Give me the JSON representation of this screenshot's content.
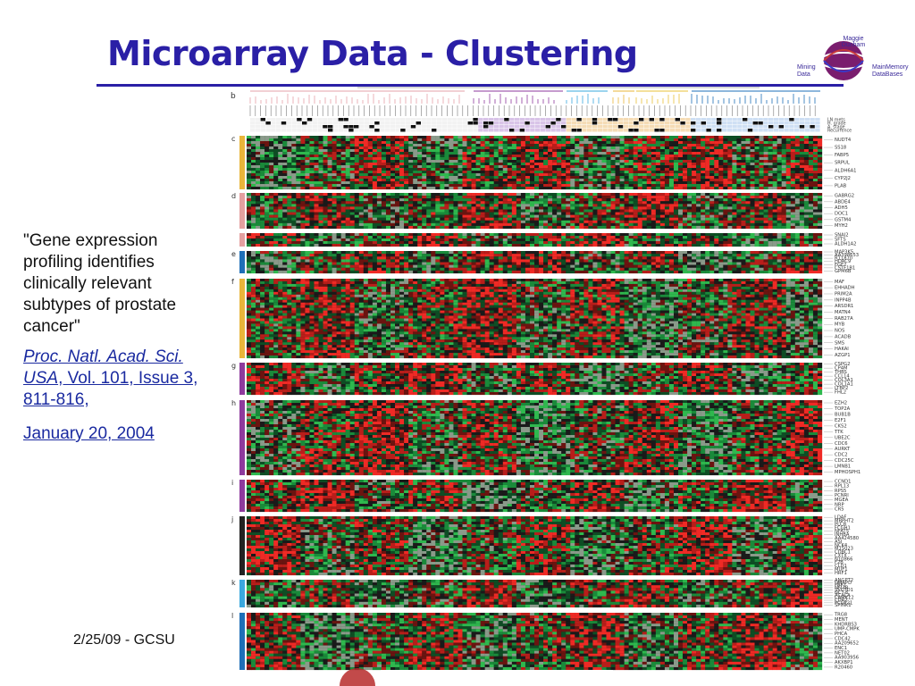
{
  "slide": {
    "title": "Microarray Data - Clustering",
    "footer_date": "2/25/09 - GCSU"
  },
  "caption": {
    "quote": "\"Gene expression profiling identifies clinically relevant subtypes of prostate cancer\"",
    "journal": "Proc. Natl. Acad. Sci. USA",
    "volume": ", Vol. 101, Issue 3, 811-816,",
    "date": "January 20, 2004"
  },
  "logo": {
    "center": "Maggie Dunham",
    "left": "Mining Data",
    "right": "MainMemory DataBases"
  },
  "figure": {
    "panel_b_label": "b",
    "clinical_rows": [
      "LN mets",
      "H. grade",
      "A. stage",
      "Recurrence"
    ],
    "panels": [
      {
        "label": "c",
        "color": "#e9b53a",
        "genes": [
          "NUDT4",
          "SS18",
          "FABP5",
          "SRPUL",
          "ALDH6A1",
          "CYP2J2",
          "PLAB"
        ]
      },
      {
        "label": "d",
        "color": "#e4a0a0",
        "genes": [
          "GABRG2",
          "ABDE4",
          "ADH5",
          "DOC1",
          "GSTM4",
          "MYH2"
        ]
      },
      {
        "label": "",
        "color": "#e4a0a0",
        "genes": [
          "SNAI2",
          "SFTS",
          "ALDH1A2"
        ]
      },
      {
        "label": "e",
        "color": "#1e6fb8",
        "genes": [
          "MAP3K5",
          "AA398653",
          "R11870",
          "HDAC9",
          "FGF2",
          "CSTF1B1",
          "GPM6B"
        ]
      },
      {
        "label": "f",
        "color": "#e9b53a",
        "genes": [
          "MAF",
          "EHHADH",
          "PRIM2A",
          "INPP4B",
          "ARSDR1",
          "MATN4",
          "RAB27A",
          "MYB",
          "NOS",
          "ACADB",
          "SMS",
          "HAKAI",
          "AZGP1"
        ]
      },
      {
        "label": "g",
        "color": "#8e3a9d",
        "genes": [
          "CSPG2",
          "CP4M",
          "THBS",
          "CCL14",
          "COL3A1",
          "COL1A1",
          "LTBP2",
          "FHL2"
        ]
      },
      {
        "label": "h",
        "color": "#8e3a9d",
        "genes": [
          "EZH2",
          "TOP2A",
          "BUB1B",
          "E2F1",
          "CKS2",
          "TTK",
          "UBE2C",
          "CDC6",
          "AURKT",
          "CDC2",
          "CDC25C",
          "LMNB1",
          "MPHOSPH1"
        ]
      },
      {
        "label": "i",
        "color": "#8e3a9d",
        "genes": [
          "CCND1",
          "RPL13",
          "RPS5",
          "PCNRI",
          "MGEA",
          "NRP",
          "CR5"
        ]
      },
      {
        "label": "j",
        "color": "#222222",
        "genes": [
          "LDAF",
          "MBPHT2",
          "PLCB",
          "FCGH1",
          "NFAT5",
          "INHBA",
          "AA424580",
          "ASI",
          "NCK4",
          "M15023",
          "CD8C1",
          "CXTX",
          "N10866",
          "F2B",
          "CLD1",
          "MUF1",
          "HRF1"
        ]
      },
      {
        "label": "k",
        "color": "#3aa8de",
        "genes": [
          "ANGPT2",
          "DMAPD",
          "FBP1",
          "NFI3B",
          "SVCTD1",
          "NCT-6",
          "ACACA",
          "CAMK12",
          "CDR2",
          "PCGF21",
          "SPINK1"
        ]
      },
      {
        "label": "l",
        "color": "#1e6fb8",
        "genes": [
          "TRG8",
          "MENT",
          "KHDRBS3",
          "UMP-CMPK",
          "PHCA",
          "CDC42",
          "AA209652",
          "ENC1",
          "NET02",
          "AA903956",
          "AKXBP1",
          "R20460"
        ]
      }
    ]
  }
}
